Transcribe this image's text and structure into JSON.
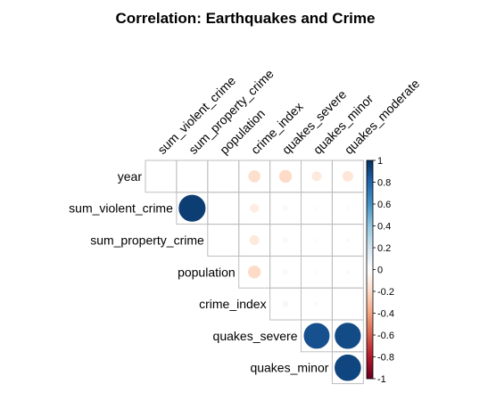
{
  "chart_data": {
    "type": "heatmap",
    "subtype": "correlation-upper",
    "title": "Correlation: Earthquakes and Crime",
    "row_labels": [
      "year",
      "sum_violent_crime",
      "sum_property_crime",
      "population",
      "crime_index",
      "quakes_severe",
      "quakes_minor"
    ],
    "col_labels": [
      "sum_violent_crime",
      "sum_property_crime",
      "population",
      "crime_index",
      "quakes_severe",
      "quakes_minor",
      "quakes_moderate"
    ],
    "values": [
      [
        -0.01,
        -0.01,
        -0.01,
        -0.18,
        -0.2,
        -0.12,
        -0.14
      ],
      [
        0.97,
        0.95,
        null,
        -0.1,
        0.04,
        0.02,
        0.02
      ],
      [
        null,
        0.95,
        null,
        -0.12,
        0.04,
        0.02,
        0.03
      ],
      [
        null,
        null,
        null,
        -0.2,
        0.04,
        0.02,
        0.03
      ],
      [
        null,
        null,
        null,
        null,
        0.05,
        0.03,
        null
      ],
      [
        null,
        null,
        null,
        null,
        null,
        0.88,
        0.9
      ],
      [
        null,
        null,
        null,
        null,
        null,
        null,
        0.92
      ]
    ],
    "colorbar": {
      "ticks": [
        "1",
        "0.8",
        "0.6",
        "0.4",
        "0.2",
        "0",
        "-0.2",
        "-0.4",
        "-0.6",
        "-0.8",
        "-1"
      ],
      "range": [
        -1,
        1
      ],
      "colors": [
        "#67001F",
        "#B2182B",
        "#D6604D",
        "#F4A582",
        "#FDDBC7",
        "#FFFFFF",
        "#D1E5F0",
        "#92C5DE",
        "#4393C3",
        "#2166AC",
        "#053061"
      ]
    },
    "grid": true
  }
}
